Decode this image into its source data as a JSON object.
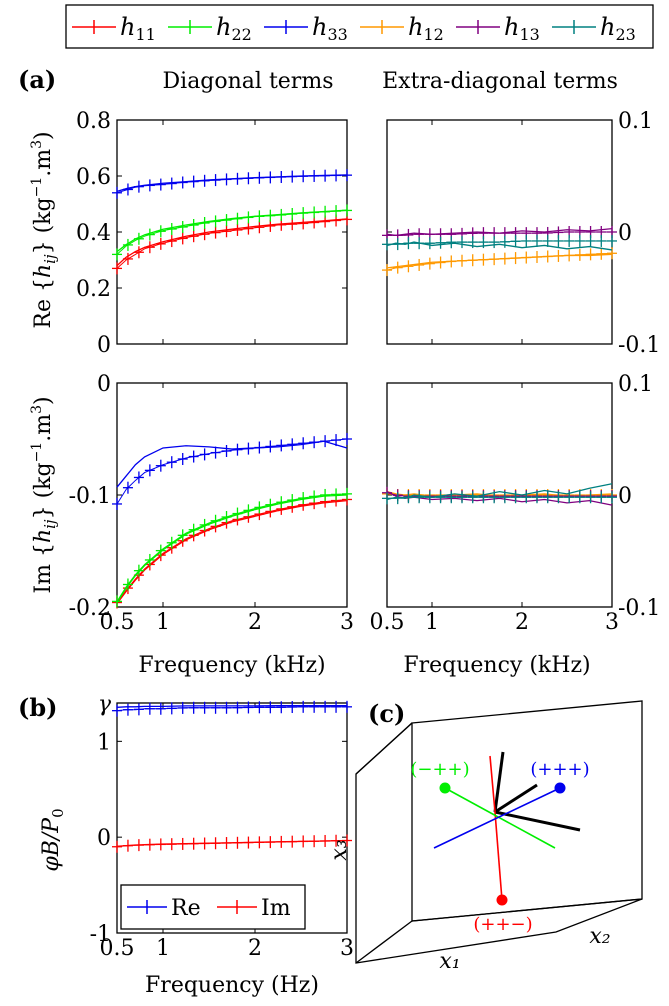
{
  "legend": {
    "entries": [
      {
        "sym": "h",
        "sub": "11",
        "color": "#ff0000"
      },
      {
        "sym": "h",
        "sub": "22",
        "color": "#00ee00"
      },
      {
        "sym": "h",
        "sub": "33",
        "color": "#0000ee"
      },
      {
        "sym": "h",
        "sub": "12",
        "color": "#ff9900"
      },
      {
        "sym": "h",
        "sub": "13",
        "color": "#800080"
      },
      {
        "sym": "h",
        "sub": "23",
        "color": "#008080"
      }
    ]
  },
  "labels": {
    "panel_a": "(a)",
    "panel_b": "(b)",
    "panel_c": "(c)",
    "col_diag": "Diagonal terms",
    "col_extra": "Extra-diagonal terms",
    "ylabel_re": "Re {hij} (kg⁻¹.m³)",
    "ylabel_im": "Im {hij} (kg⁻¹.m³)",
    "xlabel_khz": "Frequency (kHz)",
    "xlabel_hz": "Frequency (Hz)",
    "ylabel_b": "φB/P₀"
  },
  "chart_data": [
    {
      "id": "re-diag",
      "type": "line",
      "xlim": [
        0.5,
        3
      ],
      "ylim": [
        0,
        0.8
      ],
      "xticks": [
        0.5,
        1,
        2,
        3
      ],
      "xticklabels": [],
      "yticks": [
        0,
        0.2,
        0.4,
        0.6,
        0.8
      ],
      "yticklabels": [
        "0",
        "0.2",
        "0.4",
        "0.6",
        "0.8"
      ],
      "x": [
        0.5,
        0.6,
        0.7,
        0.8,
        1.0,
        1.25,
        1.5,
        1.75,
        2.0,
        2.25,
        2.5,
        2.75,
        3.0
      ],
      "series": [
        {
          "name": "h11",
          "color": "#ff0000",
          "meas": [
            0.27,
            0.3,
            0.32,
            0.34,
            0.36,
            0.38,
            0.395,
            0.405,
            0.415,
            0.425,
            0.43,
            0.437,
            0.445
          ],
          "model": [
            0.28,
            0.31,
            0.33,
            0.345,
            0.365,
            0.385,
            0.4,
            0.41,
            0.42,
            0.428,
            0.434,
            0.44,
            0.447
          ]
        },
        {
          "name": "h22",
          "color": "#00ee00",
          "meas": [
            0.32,
            0.35,
            0.37,
            0.385,
            0.405,
            0.42,
            0.435,
            0.445,
            0.455,
            0.46,
            0.467,
            0.472,
            0.477
          ],
          "model": [
            0.33,
            0.355,
            0.375,
            0.39,
            0.41,
            0.425,
            0.438,
            0.448,
            0.456,
            0.462,
            0.468,
            0.473,
            0.478
          ]
        },
        {
          "name": "h33",
          "color": "#0000ee",
          "meas": [
            0.54,
            0.55,
            0.56,
            0.565,
            0.57,
            0.578,
            0.584,
            0.589,
            0.593,
            0.596,
            0.599,
            0.601,
            0.603
          ],
          "model": [
            0.545,
            0.555,
            0.562,
            0.567,
            0.574,
            0.58,
            0.586,
            0.59,
            0.594,
            0.597,
            0.6,
            0.602,
            0.604
          ]
        }
      ]
    },
    {
      "id": "re-extra",
      "type": "line",
      "xlim": [
        0.5,
        3
      ],
      "ylim": [
        -0.1,
        0.1
      ],
      "xticks": [
        0.5,
        1,
        2,
        3
      ],
      "xticklabels": [],
      "yticks": [
        -0.1,
        0,
        0.1
      ],
      "yticklabels": [
        "-0.1",
        "0",
        "0.1"
      ],
      "x": [
        0.5,
        0.6,
        0.7,
        0.8,
        1.0,
        1.25,
        1.5,
        1.75,
        2.0,
        2.25,
        2.5,
        2.75,
        3.0
      ],
      "series": [
        {
          "name": "h12",
          "color": "#ff9900",
          "meas": [
            -0.034,
            -0.032,
            -0.031,
            -0.03,
            -0.028,
            -0.026,
            -0.025,
            -0.024,
            -0.023,
            -0.022,
            -0.021,
            -0.02,
            -0.019
          ],
          "model": [
            -0.032,
            -0.031,
            -0.03,
            -0.029,
            -0.027,
            -0.026,
            -0.025,
            -0.024,
            -0.023,
            -0.022,
            -0.021,
            -0.021,
            -0.02
          ]
        },
        {
          "name": "h13",
          "color": "#800080",
          "meas": [
            -0.003,
            -0.003,
            -0.003,
            -0.002,
            -0.002,
            -0.002,
            -0.001,
            -0.001,
            -0.001,
            -0.001,
            0.0,
            0.0,
            0.0
          ],
          "model": [
            -0.002,
            -0.003,
            -0.002,
            -0.001,
            -0.002,
            -0.001,
            0.0,
            -0.001,
            0.001,
            0.0,
            0.002,
            0.001,
            0.003
          ]
        },
        {
          "name": "h23",
          "color": "#008080",
          "meas": [
            -0.011,
            -0.011,
            -0.01,
            -0.01,
            -0.01,
            -0.009,
            -0.009,
            -0.009,
            -0.008,
            -0.008,
            -0.008,
            -0.008,
            -0.008
          ],
          "model": [
            -0.012,
            -0.01,
            -0.011,
            -0.009,
            -0.012,
            -0.01,
            -0.013,
            -0.011,
            -0.014,
            -0.012,
            -0.015,
            -0.013,
            -0.016
          ]
        }
      ]
    },
    {
      "id": "im-diag",
      "type": "line",
      "xlim": [
        0.5,
        3
      ],
      "ylim": [
        -0.2,
        0
      ],
      "xticks": [
        0.5,
        1,
        2,
        3
      ],
      "xticklabels": [
        "0.5",
        "1",
        "2",
        "3"
      ],
      "yticks": [
        -0.2,
        -0.1,
        0
      ],
      "yticklabels": [
        "-0.2",
        "-0.1",
        "0"
      ],
      "x": [
        0.5,
        0.6,
        0.7,
        0.8,
        1.0,
        1.25,
        1.5,
        1.75,
        2.0,
        2.25,
        2.5,
        2.75,
        3.0
      ],
      "series": [
        {
          "name": "h11",
          "color": "#ff0000",
          "meas": [
            -0.196,
            -0.185,
            -0.175,
            -0.166,
            -0.152,
            -0.139,
            -0.13,
            -0.123,
            -0.118,
            -0.113,
            -0.109,
            -0.106,
            -0.104
          ],
          "model": [
            -0.197,
            -0.186,
            -0.176,
            -0.167,
            -0.153,
            -0.14,
            -0.131,
            -0.124,
            -0.119,
            -0.114,
            -0.11,
            -0.107,
            -0.105
          ]
        },
        {
          "name": "h22",
          "color": "#00ee00",
          "meas": [
            -0.195,
            -0.182,
            -0.171,
            -0.162,
            -0.148,
            -0.134,
            -0.125,
            -0.118,
            -0.112,
            -0.107,
            -0.103,
            -0.1,
            -0.099
          ],
          "model": [
            -0.196,
            -0.183,
            -0.172,
            -0.163,
            -0.149,
            -0.135,
            -0.126,
            -0.119,
            -0.113,
            -0.108,
            -0.104,
            -0.101,
            -0.1
          ]
        },
        {
          "name": "h33",
          "color": "#0000ee",
          "meas": [
            -0.108,
            -0.095,
            -0.087,
            -0.08,
            -0.073,
            -0.067,
            -0.063,
            -0.06,
            -0.058,
            -0.056,
            -0.054,
            -0.052,
            -0.05
          ],
          "model": [
            -0.093,
            -0.083,
            -0.073,
            -0.066,
            -0.058,
            -0.056,
            -0.057,
            -0.059,
            -0.058,
            -0.057,
            -0.055,
            -0.052,
            -0.058
          ]
        }
      ]
    },
    {
      "id": "im-extra",
      "type": "line",
      "xlim": [
        0.5,
        3
      ],
      "ylim": [
        -0.1,
        0.1
      ],
      "xticks": [
        0.5,
        1,
        2,
        3
      ],
      "xticklabels": [
        "0.5",
        "1",
        "2",
        "3"
      ],
      "yticks": [
        -0.1,
        0,
        0.1
      ],
      "yticklabels": [
        "-0.1",
        "0",
        "0.1"
      ],
      "x": [
        0.5,
        0.6,
        0.7,
        0.8,
        1.0,
        1.25,
        1.5,
        1.75,
        2.0,
        2.25,
        2.5,
        2.75,
        3.0
      ],
      "series": [
        {
          "name": "h12",
          "color": "#ff9900",
          "meas": [
            0.001,
            0.0,
            0.0,
            0.0,
            0.0,
            0.0,
            0.0,
            0.0,
            0.0,
            0.0,
            0.0,
            0.0,
            0.0
          ],
          "model": [
            0.003,
            0.001,
            0.0,
            0.001,
            -0.001,
            0.0,
            0.001,
            -0.001,
            0.0,
            0.001,
            -0.001,
            0.0,
            0.001
          ]
        },
        {
          "name": "h13",
          "color": "#800080",
          "meas": [
            0.002,
            0.0,
            -0.001,
            -0.001,
            -0.001,
            -0.001,
            -0.001,
            -0.001,
            -0.001,
            -0.001,
            -0.001,
            -0.001,
            -0.001
          ],
          "model": [
            0.003,
            -0.001,
            -0.003,
            -0.002,
            -0.004,
            -0.003,
            -0.005,
            -0.003,
            -0.006,
            -0.004,
            -0.007,
            -0.005,
            -0.009
          ]
        },
        {
          "name": "h23",
          "color": "#008080",
          "meas": [
            -0.003,
            -0.003,
            -0.002,
            -0.002,
            -0.002,
            -0.002,
            -0.002,
            -0.002,
            -0.002,
            -0.002,
            -0.002,
            -0.002,
            -0.002
          ],
          "model": [
            -0.004,
            -0.002,
            -0.003,
            0.0,
            -0.002,
            0.001,
            -0.001,
            0.003,
            0.0,
            0.004,
            0.001,
            0.006,
            0.01
          ]
        }
      ]
    },
    {
      "id": "b-plot",
      "type": "line",
      "xlim": [
        0.5,
        3
      ],
      "ylim": [
        -1,
        1.4
      ],
      "xticks": [
        0.5,
        1,
        2,
        3
      ],
      "xticklabels": [
        "0.5",
        "1",
        "2",
        "3"
      ],
      "yticks": [
        -1,
        0,
        1
      ],
      "yticklabels": [
        "-1",
        "0",
        "1"
      ],
      "gamma_label": "γ",
      "gamma_value": 1.4,
      "x": [
        0.5,
        0.6,
        0.7,
        0.8,
        1.0,
        1.25,
        1.5,
        1.75,
        2.0,
        2.25,
        2.5,
        2.75,
        3.0
      ],
      "legend": [
        {
          "name": "Re",
          "color": "#0000ee"
        },
        {
          "name": "Im",
          "color": "#ff0000"
        }
      ],
      "series": [
        {
          "name": "Re",
          "color": "#0000ee",
          "meas": [
            1.32,
            1.33,
            1.33,
            1.34,
            1.34,
            1.35,
            1.35,
            1.35,
            1.355,
            1.355,
            1.36,
            1.36,
            1.36
          ],
          "model": [
            1.355,
            1.36,
            1.36,
            1.365,
            1.365,
            1.37,
            1.37,
            1.37,
            1.37,
            1.372,
            1.372,
            1.372,
            1.372
          ]
        },
        {
          "name": "Im",
          "color": "#ff0000",
          "meas": [
            -0.1,
            -0.09,
            -0.085,
            -0.08,
            -0.075,
            -0.07,
            -0.065,
            -0.06,
            -0.055,
            -0.05,
            -0.045,
            -0.04,
            -0.035
          ],
          "model": [
            -0.095,
            -0.088,
            -0.082,
            -0.078,
            -0.072,
            -0.067,
            -0.062,
            -0.058,
            -0.053,
            -0.048,
            -0.044,
            -0.04,
            -0.036
          ]
        }
      ]
    }
  ],
  "diagram_c": {
    "axes": {
      "x1": "x₁",
      "x2": "x₂",
      "x3": "x₃"
    },
    "points": [
      {
        "label": "(−++)",
        "color": "#00ee00"
      },
      {
        "label": "(+++)",
        "color": "#0000ee"
      },
      {
        "label": "(++−)",
        "color": "#ff0000"
      }
    ]
  }
}
